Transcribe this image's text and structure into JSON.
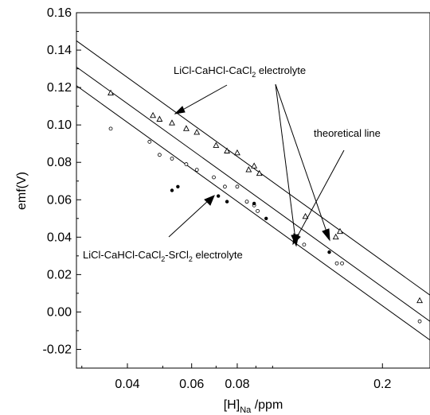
{
  "chart_data": {
    "type": "scatter",
    "title": "",
    "xlabel": {
      "main": "[H]",
      "sub": "Na",
      "suffix": " /ppm"
    },
    "ylabel": "emf(V)",
    "xscale": "log",
    "xlim": [
      0.029,
      0.27
    ],
    "ylim": [
      -0.03,
      0.16
    ],
    "x_ticks": [
      0.04,
      0.06,
      0.08,
      0.2
    ],
    "x_tick_labels": [
      "0.04",
      "0.06",
      "0.08",
      "0.2"
    ],
    "x_minor_ticks": [
      0.03,
      0.05,
      0.07,
      0.09,
      0.1
    ],
    "y_ticks": [
      -0.02,
      0.0,
      0.02,
      0.04,
      0.06,
      0.08,
      0.1,
      0.12,
      0.14,
      0.16
    ],
    "y_tick_labels": [
      "-0.02",
      "0.00",
      "0.02",
      "0.04",
      "0.06",
      "0.08",
      "0.10",
      "0.12",
      "0.14",
      "0.16"
    ],
    "grid": false,
    "series": [
      {
        "marker": "open-triangle",
        "points": [
          [
            0.036,
            0.117
          ],
          [
            0.047,
            0.105
          ],
          [
            0.049,
            0.103
          ],
          [
            0.053,
            0.101
          ],
          [
            0.058,
            0.098
          ],
          [
            0.062,
            0.096
          ],
          [
            0.07,
            0.089
          ],
          [
            0.075,
            0.086
          ],
          [
            0.08,
            0.085
          ],
          [
            0.086,
            0.076
          ],
          [
            0.089,
            0.078
          ],
          [
            0.092,
            0.074
          ],
          [
            0.123,
            0.051
          ],
          [
            0.149,
            0.04
          ],
          [
            0.153,
            0.043
          ],
          [
            0.253,
            0.006
          ]
        ]
      },
      {
        "marker": "open-circle",
        "points": [
          [
            0.036,
            0.098
          ],
          [
            0.046,
            0.091
          ],
          [
            0.049,
            0.084
          ],
          [
            0.053,
            0.082
          ],
          [
            0.058,
            0.079
          ],
          [
            0.062,
            0.076
          ],
          [
            0.069,
            0.072
          ],
          [
            0.074,
            0.067
          ],
          [
            0.08,
            0.067
          ],
          [
            0.085,
            0.059
          ],
          [
            0.089,
            0.057
          ],
          [
            0.091,
            0.054
          ],
          [
            0.122,
            0.036
          ],
          [
            0.15,
            0.026
          ],
          [
            0.155,
            0.026
          ],
          [
            0.253,
            -0.005
          ]
        ]
      },
      {
        "marker": "filled-circle",
        "points": [
          [
            0.053,
            0.065
          ],
          [
            0.055,
            0.067
          ],
          [
            0.071,
            0.062
          ],
          [
            0.075,
            0.059
          ],
          [
            0.089,
            0.058
          ],
          [
            0.096,
            0.05
          ],
          [
            0.143,
            0.032
          ]
        ]
      }
    ],
    "lines": [
      {
        "x": [
          0.029,
          0.27
        ],
        "y": [
          0.145,
          0.009
        ]
      },
      {
        "x": [
          0.029,
          0.27
        ],
        "y": [
          0.131,
          -0.005
        ]
      },
      {
        "x": [
          0.029,
          0.27
        ],
        "y": [
          0.121,
          -0.015
        ]
      }
    ],
    "annotations": [
      {
        "main": "LiCl-CaHCl-CaCl",
        "sub": "2",
        "rest": " electrolyte"
      },
      {
        "main": "theoretical line"
      },
      {
        "parts": [
          [
            "LiCl-CaHCl-CaCl",
            false
          ],
          [
            "2",
            true
          ],
          [
            "-SrCl",
            false
          ],
          [
            "2",
            true
          ],
          [
            " electrolyte",
            false
          ]
        ]
      }
    ]
  },
  "colors": {
    "ink": "#000000",
    "background": "#ffffff"
  }
}
